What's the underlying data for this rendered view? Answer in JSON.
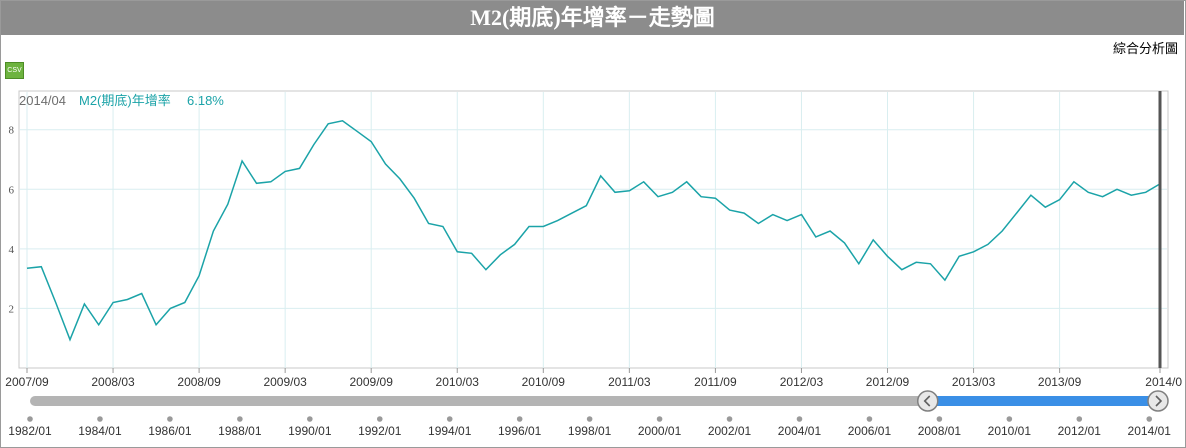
{
  "title": "M2(期底)年增率－走勢圖",
  "analysis_link": "綜合分析圖",
  "csv_label": "CSV",
  "readout": {
    "date": "2014/04",
    "series": "M2(期底)年增率",
    "value": "6.18%"
  },
  "colors": {
    "line": "#1ba3a8",
    "grid": "#d9eef0",
    "selector": "#3a8fe6",
    "slider": "#b4b4b4"
  },
  "chart_data": {
    "type": "line",
    "series": [
      {
        "name": "M2(期底)年增率",
        "values": [
          3.35,
          3.4,
          2.2,
          0.95,
          2.15,
          1.45,
          2.2,
          2.3,
          2.5,
          1.45,
          2.0,
          2.2,
          3.1,
          4.6,
          5.5,
          6.95,
          6.2,
          6.25,
          6.6,
          6.7,
          7.5,
          8.2,
          8.3,
          7.95,
          7.6,
          6.85,
          6.35,
          5.7,
          4.85,
          4.75,
          3.9,
          3.85,
          3.3,
          3.8,
          4.15,
          4.75,
          4.75,
          4.95,
          5.2,
          5.45,
          6.45,
          5.9,
          5.95,
          6.25,
          5.75,
          5.9,
          6.25,
          5.75,
          5.7,
          5.3,
          5.2,
          4.85,
          5.15,
          4.95,
          5.15,
          4.4,
          4.6,
          4.2,
          3.5,
          4.3,
          3.75,
          3.3,
          3.55,
          3.5,
          2.95,
          3.75,
          3.9,
          4.15,
          4.6,
          5.2,
          5.8,
          5.4,
          5.65,
          6.25,
          5.9,
          5.75,
          6.0,
          5.8,
          5.9,
          6.18
        ]
      }
    ],
    "start": "2007/09",
    "end": "2014/04",
    "x_tick_labels": [
      "2007/09",
      "2008/03",
      "2008/09",
      "2009/03",
      "2009/09",
      "2010/03",
      "2010/09",
      "2011/03",
      "2011/09",
      "2012/03",
      "2012/09",
      "2013/03",
      "2013/09",
      "2014/0"
    ],
    "y_ticks": [
      2,
      4,
      6,
      8
    ],
    "ylim": [
      0,
      9.3
    ],
    "grid": true,
    "navigator": {
      "labels": [
        "1982/01",
        "1984/01",
        "1986/01",
        "1988/01",
        "1990/01",
        "1992/01",
        "1994/01",
        "1996/01",
        "1998/01",
        "2000/01",
        "2002/01",
        "2004/01",
        "2006/01",
        "2008/01",
        "2010/01",
        "2012/01",
        "2014/01"
      ],
      "range": [
        "1982/01",
        "2014/04"
      ],
      "selected": [
        "2007/09",
        "2014/04"
      ]
    }
  }
}
